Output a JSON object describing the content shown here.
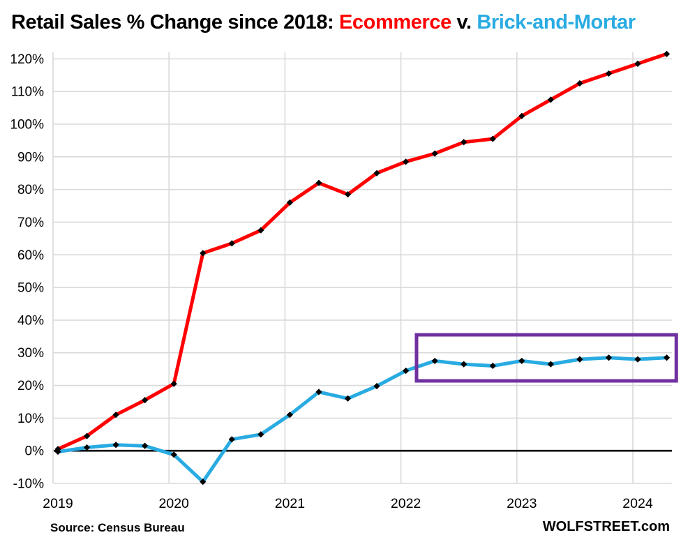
{
  "page": {
    "title_parts": {
      "prefix": "Retail Sales % Change since 2018: ",
      "ecommerce": "Ecommerce",
      "versus": " v. ",
      "brick": "Brick-and-Mortar"
    }
  },
  "footer": {
    "source": "Source: Census Bureau",
    "watermark": "WOLFSTREET.com"
  },
  "colors": {
    "ecommerce_line": "#FF0000",
    "brick_line": "#29ABE2",
    "title_accent_red": "#FF0000",
    "title_accent_blue": "#29ABE2",
    "annotation_box": "#7030A0",
    "gridline": "#D9D9D9",
    "zero_line": "#000000",
    "marker": "#000000",
    "background": "#FFFFFF"
  },
  "chart_data": {
    "type": "line",
    "title": "Retail Sales % Change since 2018: Ecommerce v. Brick-and-Mortar",
    "x_categories": [
      "2019 Q1",
      "2019 Q2",
      "2019 Q3",
      "2019 Q4",
      "2020 Q1",
      "2020 Q2",
      "2020 Q3",
      "2020 Q4",
      "2021 Q1",
      "2021 Q2",
      "2021 Q3",
      "2021 Q4",
      "2022 Q1",
      "2022 Q2",
      "2022 Q3",
      "2022 Q4",
      "2023 Q1",
      "2023 Q2",
      "2023 Q3",
      "2023 Q4",
      "2024 Q1",
      "2024 Q2"
    ],
    "x_axis_year_labels": [
      "2019",
      "2020",
      "2021",
      "2022",
      "2023",
      "2024"
    ],
    "ylim": [
      -10,
      122
    ],
    "ytick_values": [
      -10,
      0,
      10,
      20,
      30,
      40,
      50,
      60,
      70,
      80,
      90,
      100,
      110,
      120
    ],
    "ytick_suffix": "%",
    "grid": true,
    "legend_position": "in-title",
    "series": [
      {
        "name": "Ecommerce",
        "color": "#FF0000",
        "values": [
          0.5,
          4.5,
          11,
          15.5,
          20.5,
          60.5,
          63.5,
          67.5,
          76,
          82,
          78.5,
          85,
          88.5,
          91,
          94.5,
          95.5,
          102.5,
          107.5,
          112.5,
          115.5,
          118.5,
          121.5
        ]
      },
      {
        "name": "Brick-and-Mortar",
        "color": "#29ABE2",
        "values": [
          -0.3,
          1,
          1.8,
          1.5,
          -1.2,
          -9.5,
          3.5,
          5,
          11,
          18,
          16,
          19.8,
          24.5,
          27.5,
          26.5,
          26,
          27.5,
          26.5,
          28,
          28.5,
          28,
          28.5
        ]
      }
    ],
    "annotations": [
      {
        "type": "box",
        "color": "#7030A0",
        "x_from_index": 12.37,
        "x_to_index": 21.33,
        "y_from": 21.4,
        "y_to": 35.5
      }
    ]
  }
}
